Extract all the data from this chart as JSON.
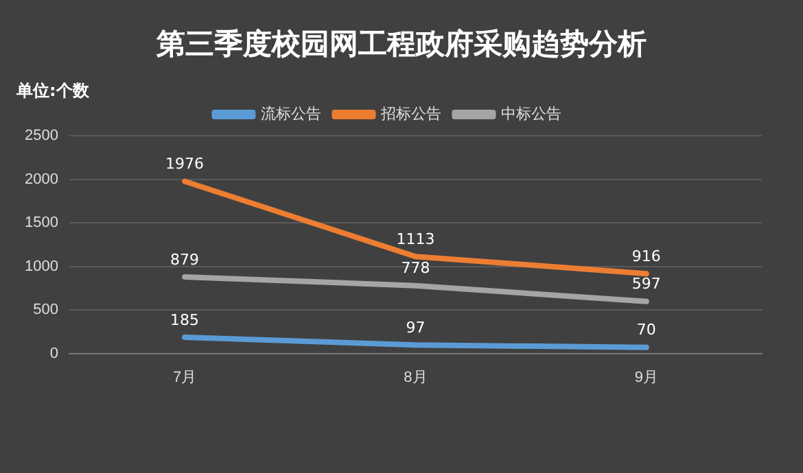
{
  "chart_data": {
    "type": "line",
    "title": "第三季度校园网工程政府采购趋势分析",
    "ylabel": "单位:个数",
    "categories": [
      "7月",
      "8月",
      "9月"
    ],
    "series": [
      {
        "name": "流标公告",
        "color": "#5b9bd5",
        "values": [
          185,
          97,
          70
        ]
      },
      {
        "name": "招标公告",
        "color": "#ed7d31",
        "values": [
          1976,
          1113,
          916
        ]
      },
      {
        "name": "中标公告",
        "color": "#a5a5a5",
        "values": [
          879,
          778,
          597
        ]
      }
    ],
    "ylim": [
      0,
      2500
    ],
    "yticks": [
      0,
      500,
      1000,
      1500,
      2000,
      2500
    ],
    "grid": "y",
    "legend": "top",
    "marker": "none",
    "line_style": "solid",
    "data_labels": true
  }
}
